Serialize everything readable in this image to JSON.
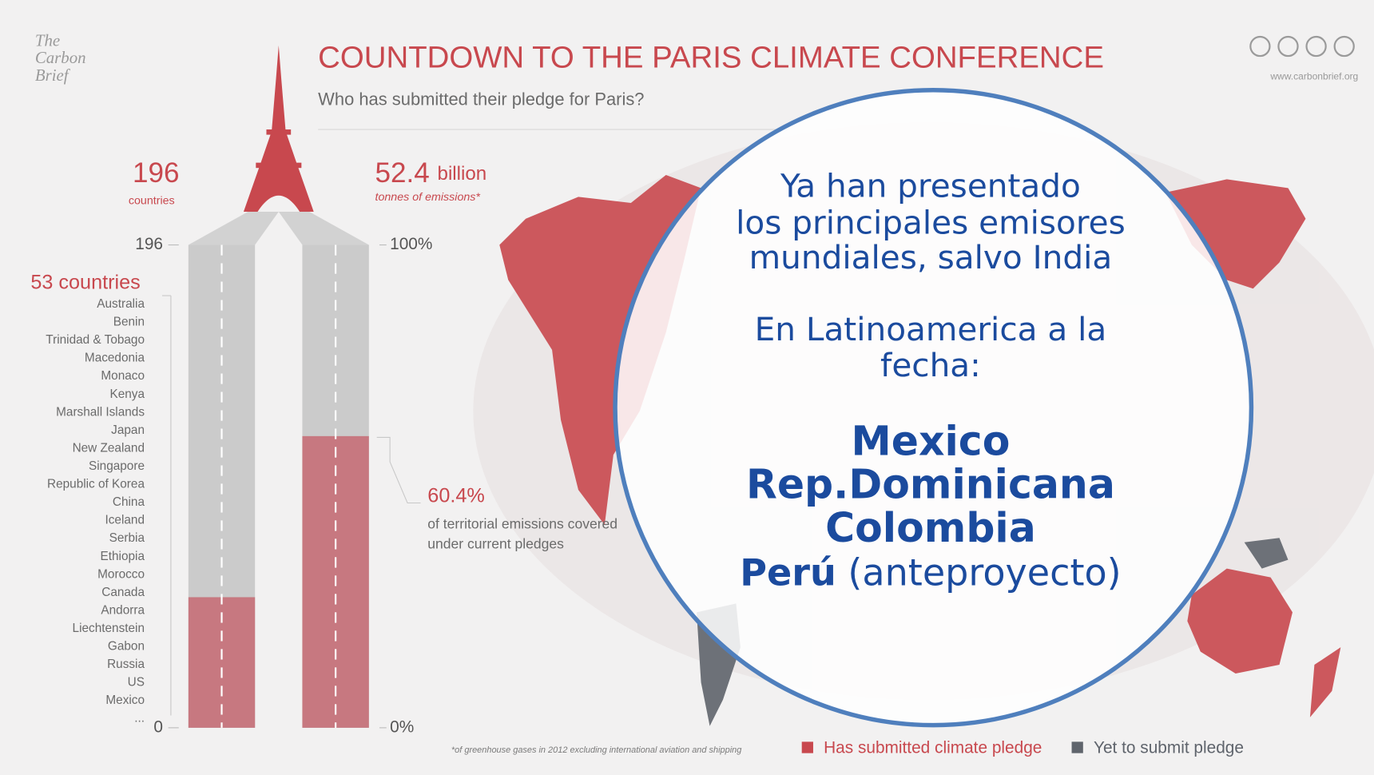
{
  "header": {
    "logo": [
      "The",
      "Carbon",
      "Brief"
    ],
    "title": "COUNTDOWN TO THE PARIS CLIMATE CONFERENCE",
    "subtitle": "Who has submitted their pledge for Paris?",
    "url": "www.carbonbrief.org"
  },
  "left_bar": {
    "headline": "196",
    "headline_unit": "countries",
    "ylim": [
      0,
      196
    ],
    "yticks": [
      0,
      196
    ],
    "submitted": 53,
    "submitted_label": "53 countries",
    "countries": [
      "Australia",
      "Benin",
      "Trinidad & Tobago",
      "Macedonia",
      "Monaco",
      "Kenya",
      "Marshall Islands",
      "Japan",
      "New Zealand",
      "Singapore",
      "Republic of Korea",
      "China",
      "Iceland",
      "Serbia",
      "Ethiopia",
      "Morocco",
      "Canada",
      "Andorra",
      "Liechtenstein",
      "Gabon",
      "Russia",
      "US",
      "Mexico",
      "..."
    ]
  },
  "right_bar": {
    "headline": "52.4",
    "headline_unit": "billion",
    "headline_sub": "tonnes of emissions*",
    "ylim": [
      0,
      100
    ],
    "yticks": [
      {
        "value": 0,
        "label": "0%"
      },
      {
        "value": 100,
        "label": "100%"
      }
    ],
    "submitted": 60.4,
    "submitted_label": "60.4%",
    "note": [
      "of territorial emissions covered",
      "under current pledges"
    ]
  },
  "callout": {
    "lines": [
      "Ya han presentado",
      "los principales emisores",
      "mundiales, salvo India",
      "En Latinoamerica a la",
      "fecha:"
    ],
    "countries": [
      "Mexico",
      "Rep.Dominicana",
      "Colombia"
    ],
    "last_country": "Perú",
    "last_note": "(anteproyecto)"
  },
  "legend": {
    "submitted": "Has submitted climate pledge",
    "pending": "Yet to submit pledge"
  },
  "footnote": "*of greenhouse gases in 2012 excluding international aviation and shipping",
  "colors": {
    "submitted": "#c8484e",
    "bar_submitted": "#c77880",
    "pending": "#cbcbcb",
    "map_pending": "#5f646c",
    "callout": "#1b4b9e"
  }
}
